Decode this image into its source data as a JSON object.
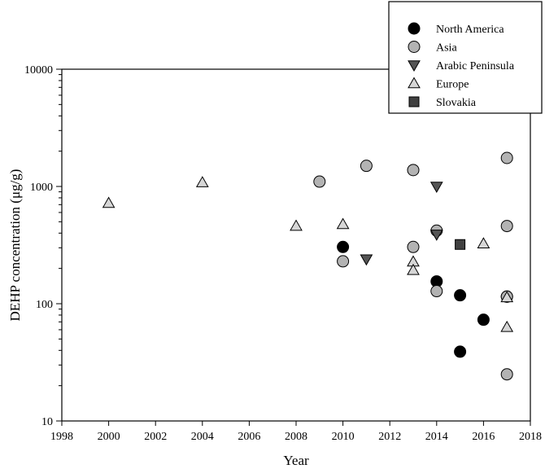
{
  "chart_data": {
    "type": "scatter",
    "xlabel": "Year",
    "ylabel": "DEHP concentration (μg/g)",
    "xlim": [
      1998,
      2018
    ],
    "ylim": [
      10,
      10000
    ],
    "yscale": "log",
    "x_ticks": [
      "1998",
      "2000",
      "2002",
      "2004",
      "2006",
      "2008",
      "2010",
      "2012",
      "2014",
      "2016",
      "2018"
    ],
    "y_ticks": [
      "10",
      "100",
      "1000",
      "10000"
    ],
    "legend_position": "top-right",
    "series": [
      {
        "name": "North America",
        "marker": "circle",
        "color": "#000000",
        "points": [
          [
            2010,
            305
          ],
          [
            2014,
            155
          ],
          [
            2015,
            118
          ],
          [
            2015,
            39
          ],
          [
            2016,
            73
          ],
          [
            2017,
            115
          ]
        ]
      },
      {
        "name": "Asia",
        "marker": "circle",
        "color": "#b3b3b3",
        "points": [
          [
            2009,
            1100
          ],
          [
            2010,
            230
          ],
          [
            2011,
            1500
          ],
          [
            2013,
            1380
          ],
          [
            2013,
            305
          ],
          [
            2014,
            420
          ],
          [
            2014,
            128
          ],
          [
            2017,
            1750
          ],
          [
            2017,
            460
          ],
          [
            2017,
            115
          ],
          [
            2017,
            25
          ]
        ]
      },
      {
        "name": "Arabic Peninsula",
        "marker": "triangle-down",
        "color": "#555555",
        "points": [
          [
            2011,
            240
          ],
          [
            2014,
            1000
          ],
          [
            2014,
            390
          ]
        ]
      },
      {
        "name": "Europe",
        "marker": "triangle-up",
        "color": "#d6d6d6",
        "points": [
          [
            2000,
            720
          ],
          [
            2004,
            1080
          ],
          [
            2008,
            460
          ],
          [
            2010,
            475
          ],
          [
            2013,
            228
          ],
          [
            2013,
            193
          ],
          [
            2016,
            325
          ],
          [
            2017,
            113
          ],
          [
            2017,
            63
          ]
        ]
      },
      {
        "name": "Slovakia",
        "marker": "square",
        "color": "#404040",
        "points": [
          [
            2015,
            320
          ]
        ]
      }
    ]
  }
}
